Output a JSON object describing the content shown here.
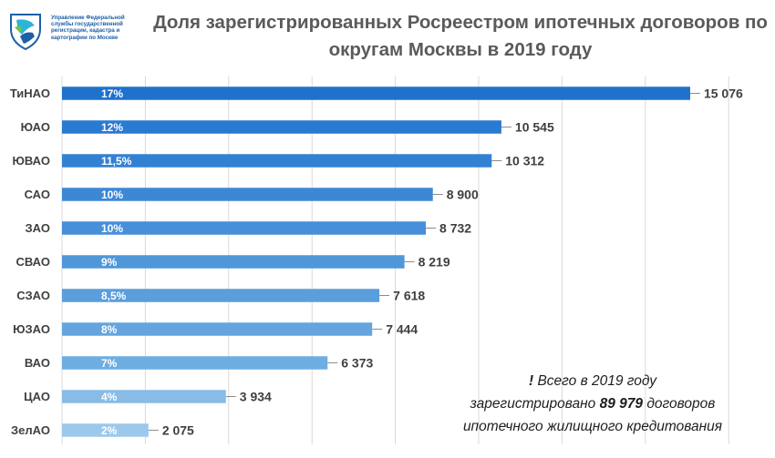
{
  "logo": {
    "icon": "rosreestr-emblem-icon",
    "lines": [
      "Управление Федеральной",
      "службы государственной",
      "регистрации, кадастра и",
      "картографии по Москве"
    ]
  },
  "title": {
    "line1": "Доля зарегистрированных Росреестром ипотечных договоров по",
    "line2": "округам Москвы в 2019 году"
  },
  "note": {
    "exclamation": "!",
    "line1": "Всего в 2019 году",
    "line2_before": "зарегистрировано",
    "total": "89 979",
    "line2_after": "договоров",
    "line3": "ипотечного жилищного кредитования"
  },
  "chart_data": {
    "type": "bar",
    "orientation": "horizontal",
    "title": "Доля зарегистрированных Росреестром ипотечных договоров по округам Москвы в 2019 году",
    "xlabel": "",
    "ylabel": "",
    "xlim": [
      0,
      16000
    ],
    "grid": true,
    "categories": [
      "ТиНАО",
      "ЮАО",
      "ЮВАО",
      "САО",
      "ЗАО",
      "СВАО",
      "СЗАО",
      "ЮЗАО",
      "ВАО",
      "ЦАО",
      "ЗелАО"
    ],
    "values": [
      15076,
      10545,
      10312,
      8900,
      8732,
      8219,
      7618,
      7444,
      6373,
      3934,
      2075
    ],
    "value_labels": [
      "15 076",
      "10 545",
      "10 312",
      "8 900",
      "8 732",
      "8 219",
      "7 618",
      "7 444",
      "6 373",
      "3 934",
      "2 075"
    ],
    "percent_labels": [
      "17%",
      "12%",
      "11,5%",
      "10%",
      "10%",
      "9%",
      "8,5%",
      "8%",
      "7%",
      "4%",
      "2%"
    ],
    "colors": [
      "#1f72cc",
      "#2a7ad1",
      "#3381d3",
      "#3d88d5",
      "#478fd8",
      "#5097da",
      "#5a9edc",
      "#64a5df",
      "#6eade1",
      "#88bbe6",
      "#9cc8ec"
    ]
  }
}
